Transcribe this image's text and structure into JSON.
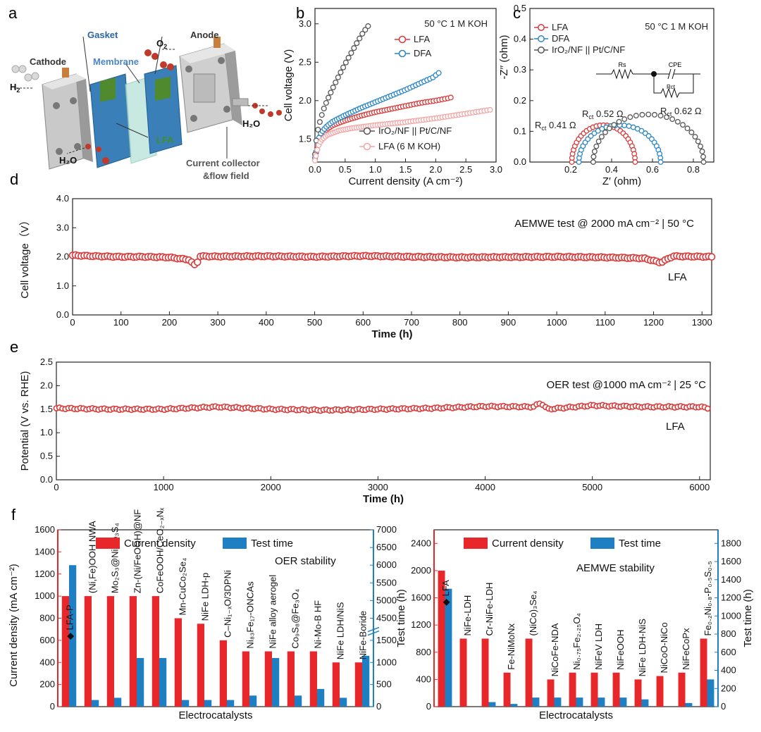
{
  "panels": {
    "a": "a",
    "b": "b",
    "c": "c",
    "d": "d",
    "e": "e",
    "f": "f"
  },
  "schematic": {
    "cathode": "Cathode",
    "anode": "Anode",
    "gasket": "Gasket",
    "membrane": "Membrane",
    "lfa": "LFA",
    "o2": "O",
    "o2_sub": "2",
    "h2": "H",
    "h2_sub": "2",
    "h2o_right": "H₂O",
    "h2o_left": "H₂O",
    "current_collector_1": "Current collector",
    "current_collector_2": "&flow field"
  },
  "colors": {
    "red": "#d93a3a",
    "pink": "#f2a5a5",
    "blue": "#2b86c4",
    "gray": "#555555",
    "bar_red": "#e8272a",
    "bar_blue": "#1e7fc3",
    "axis_red": "#e8272a",
    "axis_blue": "#1e7fc3"
  },
  "chart_data": [
    {
      "id": "b",
      "type": "line",
      "title": "50 °C 1 M KOH",
      "xlabel": "Current density (A cm⁻²)",
      "ylabel": "Cell voltage (V)",
      "xlim": [
        0,
        3.0
      ],
      "ylim": [
        1.2,
        3.2
      ],
      "xticks": [
        "0.0",
        "0.5",
        "1.0",
        "1.5",
        "2.0",
        "2.5",
        "3.0"
      ],
      "yticks": [
        "1.5",
        "2.0",
        "2.5",
        "3.0"
      ],
      "series": [
        {
          "name": "LFA",
          "color": "red",
          "x": [
            0,
            0.05,
            0.1,
            0.2,
            0.3,
            0.5,
            0.75,
            1.0,
            1.25,
            1.5,
            1.75,
            2.0,
            2.2,
            2.25
          ],
          "y": [
            1.25,
            1.45,
            1.55,
            1.63,
            1.68,
            1.74,
            1.8,
            1.85,
            1.89,
            1.93,
            1.97,
            2.0,
            2.03,
            2.04
          ]
        },
        {
          "name": "DFA",
          "color": "blue",
          "x": [
            0,
            0.05,
            0.1,
            0.2,
            0.3,
            0.5,
            0.75,
            1.0,
            1.25,
            1.5,
            1.75,
            1.95,
            2.05
          ],
          "y": [
            1.25,
            1.48,
            1.58,
            1.67,
            1.73,
            1.81,
            1.9,
            1.98,
            2.06,
            2.14,
            2.23,
            2.3,
            2.36
          ]
        },
        {
          "name": "IrO₂/NF || Pt/C/NF",
          "color": "gray",
          "x": [
            0,
            0.03,
            0.06,
            0.1,
            0.15,
            0.2,
            0.3,
            0.4,
            0.5,
            0.6,
            0.7,
            0.8,
            0.88
          ],
          "y": [
            1.3,
            1.55,
            1.66,
            1.78,
            1.9,
            2.0,
            2.17,
            2.33,
            2.48,
            2.62,
            2.76,
            2.89,
            2.97
          ]
        },
        {
          "name": "LFA (6 M KOH)",
          "color": "pink",
          "x": [
            0,
            0.05,
            0.1,
            0.2,
            0.4,
            0.6,
            0.8,
            1.0,
            1.5,
            2.0,
            2.5,
            2.9
          ],
          "y": [
            1.22,
            1.4,
            1.48,
            1.55,
            1.61,
            1.64,
            1.66,
            1.68,
            1.72,
            1.77,
            1.83,
            1.88
          ]
        }
      ]
    },
    {
      "id": "c",
      "type": "scatter",
      "title": "50 °C  1 M KOH",
      "xlabel": "Z′ (ohm)",
      "ylabel": "-Z′′ (ohm)",
      "xlim": [
        0.0,
        0.9
      ],
      "ylim": [
        0.0,
        0.5
      ],
      "xticks": [
        "0.2",
        "0.4",
        "0.6",
        "0.8"
      ],
      "yticks": [
        "0.0",
        "0.1",
        "0.2",
        "0.3",
        "0.4",
        "0.5"
      ],
      "series": [
        {
          "name": "LFA",
          "color": "red",
          "center": 0.36,
          "radius": 0.155,
          "peak": 0.12
        },
        {
          "name": "DFA",
          "color": "blue",
          "center": 0.44,
          "radius": 0.2,
          "peak": 0.12
        },
        {
          "name": "IrO₂/NF || Pt/C/NF",
          "color": "gray",
          "center": 0.58,
          "radius": 0.27,
          "peak": 0.155
        }
      ],
      "annotations": {
        "lfa_r": "R",
        "lfa_sub": "ct",
        "lfa_val": " 0.41 Ω",
        "dfa_r": "R",
        "dfa_sub": "ct",
        "dfa_val": " 0.52 Ω",
        "iro_r": "R",
        "iro_sub": "ct",
        "iro_val": " 0.62 Ω",
        "circuit_rs": "Rs",
        "circuit_cpe": "CPE",
        "circuit_rct": "Rct"
      }
    },
    {
      "id": "d",
      "type": "line",
      "title": "AEMWE test @ 2000 mA cm⁻² | 50 °C",
      "series_label": "LFA",
      "xlabel": "Time (h)",
      "ylabel": "Cell voltage（V）",
      "xlim": [
        0,
        1320
      ],
      "ylim": [
        0,
        4.0
      ],
      "xticks": [
        "0",
        "100",
        "200",
        "300",
        "400",
        "500",
        "600",
        "700",
        "800",
        "900",
        "1000",
        "1100",
        "1200",
        "1300"
      ],
      "yticks": [
        "0.0",
        "1.0",
        "2.0",
        "3.0",
        "4.0"
      ],
      "x": [
        0,
        50,
        100,
        150,
        200,
        240,
        255,
        262,
        300,
        400,
        500,
        600,
        700,
        800,
        900,
        1000,
        1100,
        1180,
        1215,
        1240,
        1320
      ],
      "y": [
        2.05,
        2.02,
        2.0,
        2.0,
        1.98,
        1.9,
        1.68,
        2.02,
        2.01,
        2.02,
        2.0,
        2.03,
        2.0,
        1.98,
        1.99,
        2.0,
        1.98,
        1.95,
        1.8,
        2.02,
        2.0
      ]
    },
    {
      "id": "e",
      "type": "line",
      "title": "OER test @1000  mA cm⁻² | 25 °C",
      "series_label": "LFA",
      "xlabel": "Time (h)",
      "ylabel": "Potential (V vs. RHE)",
      "xlim": [
        0,
        6100
      ],
      "ylim": [
        0,
        2.5
      ],
      "xticks": [
        "0",
        "1000",
        "2000",
        "3000",
        "4000",
        "5000",
        "6000"
      ],
      "yticks": [
        "0.0",
        "0.5",
        "1.0",
        "1.5",
        "2.0",
        "2.5"
      ],
      "x": [
        0,
        500,
        1000,
        1500,
        2000,
        2500,
        3000,
        3500,
        4000,
        4450,
        4520,
        4580,
        5000,
        5500,
        6000,
        6100
      ],
      "y": [
        1.52,
        1.5,
        1.5,
        1.55,
        1.5,
        1.48,
        1.5,
        1.52,
        1.56,
        1.55,
        1.64,
        1.5,
        1.58,
        1.55,
        1.55,
        1.52
      ]
    },
    {
      "id": "f1",
      "type": "bar",
      "title": "OER stability",
      "xlabel": "Electrocatalysts",
      "ylabel": "Current density (mA cm⁻²)",
      "ylabel2": "Test time (h)",
      "legend": [
        "Current density",
        "Test time"
      ],
      "ylim": [
        0,
        1600
      ],
      "yticks": [
        "0",
        "200",
        "400",
        "600",
        "800",
        "1000",
        "1200",
        "1400",
        "1600"
      ],
      "y2ticks": [
        "0",
        "500",
        "1000",
        "1500",
        "4500",
        "5000",
        "5500",
        "6000",
        "6500",
        "7000"
      ],
      "highlight_label": "◆ LFA-P",
      "categories": [
        "LFA-P",
        "(Ni,Fe)OOH NWA",
        "Mo₂S₃@NiMo₃S₄",
        "Zn-(Ni/FeOOH)@NF",
        "CoFeOOH/CeO₂₋ₓNₓ",
        "Mn-CuCo₂Se₄",
        "NiFe LDH-p",
        "C–Ni₁₋ₓO/3DPNi",
        "Ni₈₃Fe₁₇-ONCAs",
        "NiFe alloy aerogel",
        "Co₉S₈@Fe₃O₄",
        "Ni-Mo-B HF",
        "NiFe LDH/NiS",
        "NiFe-Boride"
      ],
      "series": [
        {
          "name": "Current density",
          "values": [
            1000,
            1000,
            1000,
            1000,
            1000,
            800,
            750,
            600,
            500,
            500,
            500,
            500,
            400,
            400
          ]
        },
        {
          "name": "Test time",
          "values": [
            6000,
            150,
            200,
            1100,
            1100,
            150,
            150,
            150,
            250,
            1100,
            250,
            400,
            200,
            1150
          ]
        }
      ]
    },
    {
      "id": "f2",
      "type": "bar",
      "title": "AEMWE stability",
      "xlabel": "Electrocatalysts",
      "ylabel2": "Test time (h)",
      "legend": [
        "Current density",
        "Test time"
      ],
      "ylim": [
        0,
        2600
      ],
      "yticks": [
        "0",
        "400",
        "800",
        "1200",
        "1600",
        "2000",
        "2400"
      ],
      "y2ticks": [
        "0",
        "200",
        "400",
        "600",
        "800",
        "1000",
        "1200",
        "1400",
        "1600",
        "1800"
      ],
      "highlight_label": "◆ LFA",
      "categories": [
        "LFA",
        "NiFe-LDH",
        "Cr-NiFe-LDH",
        "Fe-NiMoNx",
        "(NiCo)₃Se₄",
        "NiCoFe-NDA",
        "Ni₀.₇₅Fe₂.₂₅O₄",
        "NiFeV LDH",
        "NiFeOOH",
        "NiFe LDH-NiS",
        "NiCoO-NiCo",
        "NiFeCoPx",
        "Fe₀.₂Ni₀.₈-P₀.₅S₀.₅"
      ],
      "series": [
        {
          "name": "Current density",
          "values": [
            2000,
            1000,
            1000,
            500,
            1000,
            400,
            500,
            500,
            500,
            400,
            450,
            500,
            1000
          ]
        },
        {
          "name": "Test time",
          "values": [
            1300,
            0,
            50,
            30,
            100,
            100,
            100,
            100,
            100,
            80,
            0,
            40,
            300
          ]
        }
      ]
    }
  ]
}
